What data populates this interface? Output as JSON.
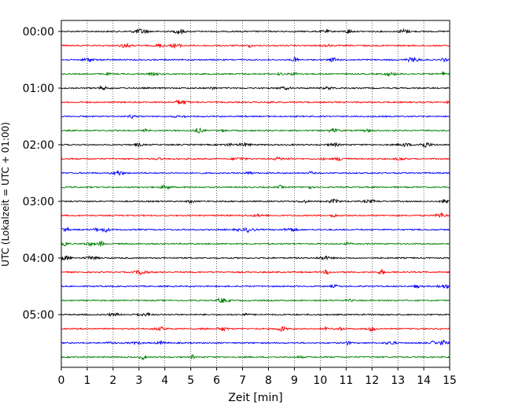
{
  "chart_data": {
    "type": "line",
    "title": "",
    "xlabel": "Zeit  [min]",
    "ylabel": "UTC (Lokalzeit = UTC + 01:00)",
    "xlim": [
      0,
      15
    ],
    "x_ticks": [
      "0",
      "1",
      "2",
      "3",
      "4",
      "5",
      "6",
      "7",
      "8",
      "9",
      "10",
      "11",
      "12",
      "13",
      "14",
      "15"
    ],
    "y_ticks": [
      "00:00",
      "01:00",
      "02:00",
      "03:00",
      "04:00",
      "05:00"
    ],
    "grid": "vertical dotted at each minute",
    "trace_count": 24,
    "trace_interval_min": 15,
    "trace_color_cycle": [
      "#000000",
      "#ff0000",
      "#0000ff",
      "#008000"
    ],
    "series": [
      {
        "start": "00:00",
        "color": "#000000"
      },
      {
        "start": "00:15",
        "color": "#ff0000"
      },
      {
        "start": "00:30",
        "color": "#0000ff"
      },
      {
        "start": "00:45",
        "color": "#008000"
      },
      {
        "start": "01:00",
        "color": "#000000"
      },
      {
        "start": "01:15",
        "color": "#ff0000"
      },
      {
        "start": "01:30",
        "color": "#0000ff"
      },
      {
        "start": "01:45",
        "color": "#008000"
      },
      {
        "start": "02:00",
        "color": "#000000"
      },
      {
        "start": "02:15",
        "color": "#ff0000"
      },
      {
        "start": "02:30",
        "color": "#0000ff"
      },
      {
        "start": "02:45",
        "color": "#008000"
      },
      {
        "start": "03:00",
        "color": "#000000"
      },
      {
        "start": "03:15",
        "color": "#ff0000"
      },
      {
        "start": "03:30",
        "color": "#0000ff"
      },
      {
        "start": "03:45",
        "color": "#008000"
      },
      {
        "start": "04:00",
        "color": "#000000"
      },
      {
        "start": "04:15",
        "color": "#ff0000"
      },
      {
        "start": "04:30",
        "color": "#0000ff"
      },
      {
        "start": "04:45",
        "color": "#008000"
      },
      {
        "start": "05:00",
        "color": "#000000"
      },
      {
        "start": "05:15",
        "color": "#ff0000"
      },
      {
        "start": "05:30",
        "color": "#0000ff"
      },
      {
        "start": "05:45",
        "color": "#008000"
      }
    ]
  }
}
